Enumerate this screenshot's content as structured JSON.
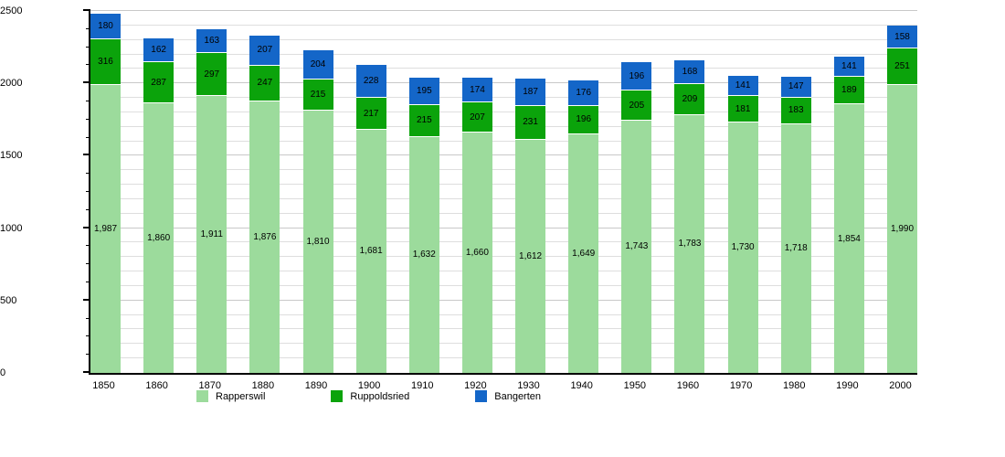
{
  "chart_data": {
    "type": "bar",
    "stacked": true,
    "title": "",
    "xlabel": "",
    "ylabel": "",
    "grid": true,
    "grid_step": 100,
    "ylim": [
      0,
      2500
    ],
    "ytick_step_minor": 125,
    "ytick_step_major": 500,
    "legend_position": "bottom",
    "categories": [
      "1850",
      "1860",
      "1870",
      "1880",
      "1890",
      "1900",
      "1910",
      "1920",
      "1930",
      "1940",
      "1950",
      "1960",
      "1970",
      "1980",
      "1990",
      "2000"
    ],
    "series": [
      {
        "name": "Rapperswil",
        "color": "#9cdb9c",
        "values": [
          1987,
          1860,
          1911,
          1876,
          1810,
          1681,
          1632,
          1660,
          1612,
          1649,
          1743,
          1783,
          1730,
          1718,
          1854,
          1990
        ]
      },
      {
        "name": "Ruppoldsried",
        "color": "#0ba30b",
        "values": [
          316,
          287,
          297,
          247,
          215,
          217,
          215,
          207,
          231,
          196,
          205,
          209,
          181,
          183,
          189,
          251
        ]
      },
      {
        "name": "Bangerten",
        "color": "#1466c8",
        "values": [
          180,
          162,
          163,
          207,
          204,
          228,
          195,
          174,
          187,
          176,
          196,
          168,
          141,
          147,
          141,
          158
        ]
      }
    ]
  },
  "colors": {
    "axis": "#000000",
    "gridline_minor": "#dedede",
    "gridline_major": "#c8c8c8",
    "background": "#ffffff",
    "label_text": "#000000"
  }
}
